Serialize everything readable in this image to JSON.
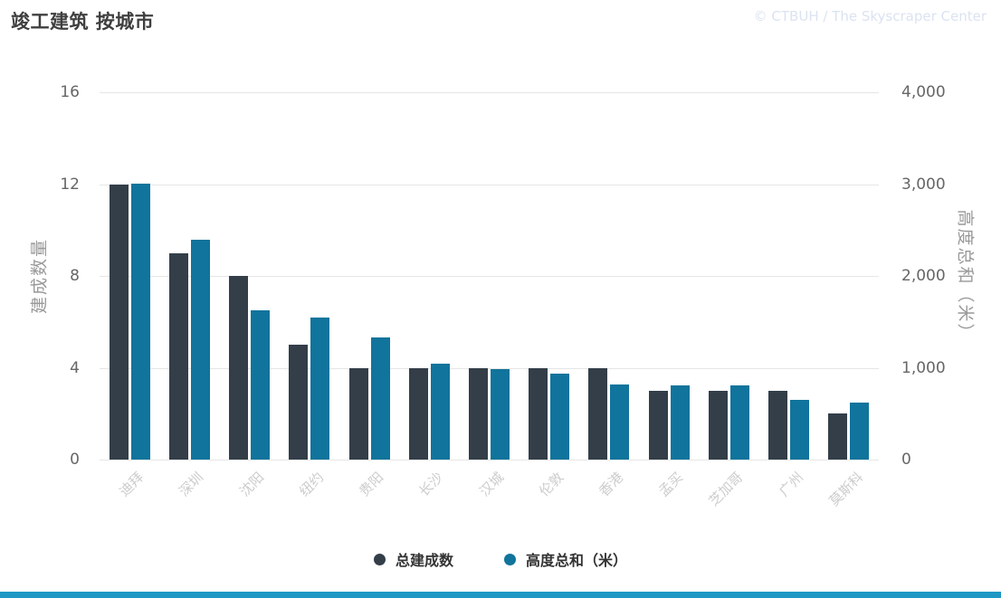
{
  "title": "竣工建筑 按城市",
  "watermark": "© CTBUH / The Skyscraper Center",
  "colors": {
    "background": "#ffffff",
    "series_built": "#333e49",
    "series_height": "#10749c",
    "grid": "#e6e6e6",
    "axis_tick_text": "#666666",
    "axis_title_text": "#999999",
    "category_text": "#cccccc",
    "title_text": "#3f3f3f",
    "watermark_text": "#dbe3f1",
    "legend_text": "#333333",
    "footer": "#1e97c5"
  },
  "chart_data": {
    "type": "bar",
    "title": "竣工建筑 按城市",
    "categories": [
      "迪拜",
      "深圳",
      "沈阳",
      "纽约",
      "贵阳",
      "长沙",
      "汉城",
      "伦敦",
      "香港",
      "孟买",
      "芝加哥",
      "广州",
      "莫斯科"
    ],
    "series": [
      {
        "name": "总建成数",
        "axis": "left",
        "color": "#333e49",
        "values": [
          12,
          9,
          8,
          5,
          4,
          4,
          4,
          4,
          4,
          3,
          3,
          3,
          2
        ]
      },
      {
        "name": "高度总和（米）",
        "axis": "right",
        "color": "#10749c",
        "values": [
          3010,
          2395,
          1625,
          1545,
          1330,
          1045,
          990,
          940,
          820,
          805,
          805,
          655,
          620
        ]
      }
    ],
    "left_axis": {
      "title": "建成数量",
      "min": 0,
      "max": 16,
      "ticks": [
        0,
        4,
        8,
        12,
        16
      ],
      "tick_labels": [
        "0",
        "4",
        "8",
        "12",
        "16"
      ]
    },
    "right_axis": {
      "title": "高度总和（米）",
      "min": 0,
      "max": 4000,
      "ticks": [
        0,
        1000,
        2000,
        3000,
        4000
      ],
      "tick_labels": [
        "0",
        "1,000",
        "2,000",
        "3,000",
        "4,000"
      ]
    },
    "legend": [
      "总建成数",
      "高度总和（米）"
    ],
    "grid": "horizontal",
    "legend_position": "bottom-center"
  }
}
